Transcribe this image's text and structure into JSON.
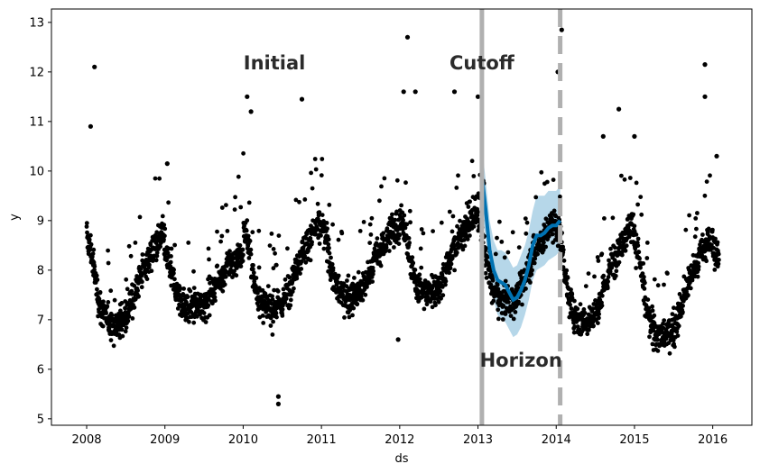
{
  "chart_data": {
    "type": "scatter",
    "title": "",
    "xlabel": "ds",
    "ylabel": "y",
    "xlim": [
      2007.55,
      2016.5
    ],
    "ylim": [
      4.87,
      13.27
    ],
    "x_ticks": [
      "2008",
      "2009",
      "2010",
      "2011",
      "2012",
      "2013",
      "2014",
      "2015",
      "2016"
    ],
    "y_ticks": [
      "5",
      "6",
      "7",
      "8",
      "9",
      "10",
      "11",
      "12",
      "13"
    ],
    "grid": false,
    "legend": "none",
    "colors": {
      "points": "#000000",
      "forecast_line": "#0072B2",
      "forecast_band": "#9ecae1",
      "cutoff_line": "#b0b0b0",
      "horizon_line": "#b0b0b0",
      "annotation_text": "#2b2b2b"
    },
    "annotations": [
      {
        "text": "Initial",
        "x": 2010.4,
        "y": 12.05
      },
      {
        "text": "Cutoff",
        "x": 2013.05,
        "y": 12.05
      },
      {
        "text": "Horizon",
        "x": 2013.55,
        "y": 6.05
      }
    ],
    "vertical_lines": [
      {
        "name": "cutoff",
        "x": 2013.05,
        "style": "solid"
      },
      {
        "name": "horizon",
        "x": 2014.05,
        "style": "dashed"
      }
    ],
    "seasonal_profile": {
      "month_fraction": [
        0.0,
        0.05,
        0.1,
        0.15,
        0.2,
        0.3,
        0.4,
        0.5,
        0.6,
        0.7,
        0.8,
        0.9,
        0.95,
        1.0
      ],
      "mean_y_offset": [
        0.8,
        0.6,
        0.1,
        -0.4,
        -0.7,
        -0.9,
        -0.9,
        -0.8,
        -0.4,
        0.1,
        0.4,
        0.7,
        0.8,
        0.8
      ]
    },
    "yearly_base": [
      {
        "year": 2008,
        "base": 7.85,
        "peak": 9.2
      },
      {
        "year": 2009,
        "base": 7.8,
        "peak": 8.6
      },
      {
        "year": 2010,
        "base": 8.1,
        "peak": 9.4
      },
      {
        "year": 2011,
        "base": 8.2,
        "peak": 9.3
      },
      {
        "year": 2012,
        "base": 8.4,
        "peak": 9.6
      },
      {
        "year": 2013,
        "base": 8.2,
        "peak": 9.4
      },
      {
        "year": 2014,
        "base": 8.0,
        "peak": 9.5
      },
      {
        "year": 2015,
        "base": 7.7,
        "peak": 9.2
      },
      {
        "year": 2016,
        "base": 8.0,
        "peak": 8.6
      }
    ],
    "outliers": [
      {
        "x": 2008.1,
        "y": 12.1
      },
      {
        "x": 2008.05,
        "y": 10.9
      },
      {
        "x": 2009.03,
        "y": 10.15
      },
      {
        "x": 2010.05,
        "y": 11.5
      },
      {
        "x": 2010.1,
        "y": 11.2
      },
      {
        "x": 2010.75,
        "y": 11.45
      },
      {
        "x": 2010.45,
        "y": 5.45
      },
      {
        "x": 2010.45,
        "y": 5.3
      },
      {
        "x": 2012.1,
        "y": 12.7
      },
      {
        "x": 2012.05,
        "y": 11.6
      },
      {
        "x": 2012.2,
        "y": 11.6
      },
      {
        "x": 2011.98,
        "y": 6.6
      },
      {
        "x": 2012.7,
        "y": 11.6
      },
      {
        "x": 2013.0,
        "y": 11.5
      },
      {
        "x": 2014.07,
        "y": 12.85
      },
      {
        "x": 2014.02,
        "y": 12.0
      },
      {
        "x": 2014.6,
        "y": 10.7
      },
      {
        "x": 2014.8,
        "y": 11.25
      },
      {
        "x": 2015.0,
        "y": 10.7
      },
      {
        "x": 2015.9,
        "y": 12.15
      },
      {
        "x": 2015.9,
        "y": 11.5
      },
      {
        "x": 2016.05,
        "y": 10.3
      }
    ],
    "forecast": {
      "x": [
        2013.05,
        2013.1,
        2013.15,
        2013.2,
        2013.25,
        2013.3,
        2013.35,
        2013.4,
        2013.45,
        2013.5,
        2013.55,
        2013.6,
        2013.65,
        2013.7,
        2013.75,
        2013.8,
        2013.85,
        2013.9,
        2013.95,
        2014.0,
        2014.05
      ],
      "y": [
        9.9,
        9.2,
        8.4,
        8.0,
        7.8,
        7.75,
        7.7,
        7.55,
        7.4,
        7.45,
        7.6,
        7.8,
        8.1,
        8.5,
        8.7,
        8.7,
        8.75,
        8.85,
        8.9,
        8.9,
        9.0
      ],
      "lower": [
        9.3,
        8.6,
        7.8,
        7.4,
        7.1,
        7.0,
        6.95,
        6.8,
        6.65,
        6.7,
        6.85,
        7.1,
        7.4,
        7.8,
        8.0,
        8.05,
        8.1,
        8.2,
        8.25,
        8.3,
        8.4
      ],
      "upper": [
        10.5,
        9.8,
        9.0,
        8.6,
        8.4,
        8.4,
        8.35,
        8.2,
        8.05,
        8.1,
        8.3,
        8.5,
        8.8,
        9.2,
        9.5,
        9.5,
        9.5,
        9.6,
        9.6,
        9.6,
        9.7
      ]
    }
  }
}
